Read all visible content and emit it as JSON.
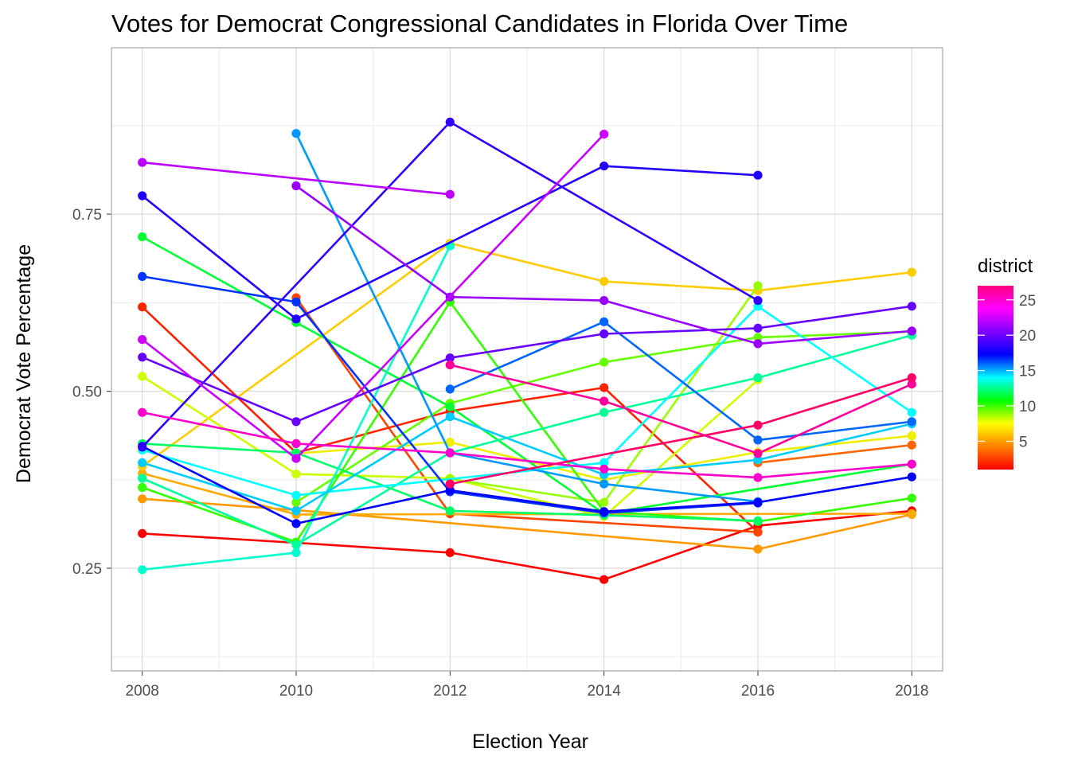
{
  "chart_data": {
    "type": "line",
    "title": "Votes for Democrat Congressional Candidates in Florida Over Time",
    "xlabel": "Election Year",
    "ylabel": "Democrat Vote Percentage",
    "x": [
      2008,
      2010,
      2012,
      2014,
      2016,
      2018
    ],
    "x_ticks": [
      "2008",
      "2010",
      "2012",
      "2014",
      "2016",
      "2018"
    ],
    "xlim": [
      2007.6,
      2018.4
    ],
    "y_ticks": [
      "0.25",
      "0.50",
      "0.75"
    ],
    "ylim": [
      0.105,
      0.985
    ],
    "grid": true,
    "legend": {
      "title": "district",
      "position": "right",
      "type": "colorbar",
      "ticks": [
        "5",
        "10",
        "15",
        "20",
        "25"
      ],
      "range": [
        1,
        27
      ],
      "colors": [
        "#ff0000",
        "#ff8000",
        "#ffff00",
        "#00ff00",
        "#00ffff",
        "#0000ff",
        "#8000ff",
        "#ff00ff",
        "#ff0080"
      ]
    },
    "series": [
      {
        "district": 1,
        "color": "#ff0000",
        "values": [
          0.299,
          0.286,
          0.272,
          0.234,
          0.31,
          0.331
        ]
      },
      {
        "district": 2,
        "color": "#ff2200",
        "values": [
          0.619,
          0.413,
          0.472,
          0.505,
          0.301,
          null
        ]
      },
      {
        "district": 3,
        "color": "#ff4400",
        "values": [
          null,
          0.632,
          0.327,
          null,
          0.301,
          null
        ]
      },
      {
        "district": 4,
        "color": "#ff6600",
        "values": [
          null,
          null,
          null,
          null,
          0.399,
          0.424
        ]
      },
      {
        "district": 5,
        "color": "#ff9900",
        "values": [
          0.348,
          0.332,
          null,
          null,
          0.277,
          0.326
        ]
      },
      {
        "district": 6,
        "color": "#ffaa00",
        "values": [
          0.384,
          0.326,
          null,
          null,
          null,
          0.327
        ]
      },
      {
        "district": 7,
        "color": "#ffcc00",
        "values": [
          0.394,
          null,
          0.709,
          0.655,
          0.642,
          0.668
        ]
      },
      {
        "district": 8,
        "color": "#eeee00",
        "values": [
          null,
          0.412,
          0.428,
          0.375,
          0.414,
          0.437
        ]
      },
      {
        "district": 9,
        "color": "#ccff00",
        "values": [
          0.521,
          0.383,
          0.377,
          0.323,
          0.516,
          null
        ]
      },
      {
        "district": 10,
        "color": "#99ff00",
        "values": [
          null,
          null,
          0.376,
          0.343,
          0.649,
          null
        ]
      },
      {
        "district": 11,
        "color": "#66ff00",
        "values": [
          null,
          0.343,
          0.483,
          0.541,
          0.576,
          0.584
        ]
      },
      {
        "district": 12,
        "color": "#33ff00",
        "values": [
          0.364,
          0.287,
          0.626,
          0.33,
          0.316,
          0.349
        ]
      },
      {
        "district": 13,
        "color": "#00ff33",
        "values": [
          0.718,
          0.597,
          0.478,
          0.327,
          null,
          0.397
        ]
      },
      {
        "district": 14,
        "color": "#00ff66",
        "values": [
          0.426,
          0.413,
          0.331,
          0.325,
          0.317,
          null
        ]
      },
      {
        "district": 15,
        "color": "#00ff99",
        "values": [
          0.377,
          0.283,
          0.413,
          0.47,
          0.519,
          0.579
        ]
      },
      {
        "district": 16,
        "color": "#00ffcc",
        "values": [
          0.248,
          0.272,
          0.705,
          null,
          null,
          null
        ]
      },
      {
        "district": 17,
        "color": "#00ffff",
        "values": [
          0.417,
          0.353,
          null,
          0.399,
          0.62,
          0.47
        ]
      },
      {
        "district": 18,
        "color": "#00ccff",
        "values": [
          0.399,
          0.331,
          0.464,
          0.382,
          0.403,
          0.454
        ]
      },
      {
        "district": 19,
        "color": "#0099ff",
        "values": [
          null,
          0.864,
          0.413,
          0.369,
          0.344,
          null
        ]
      },
      {
        "district": 20,
        "color": "#0066ff",
        "values": [
          null,
          null,
          0.503,
          0.598,
          0.431,
          0.457
        ]
      },
      {
        "district": 21,
        "color": "#0033ff",
        "values": [
          0.662,
          0.626,
          0.358,
          0.328,
          0.342,
          null
        ]
      },
      {
        "district": 22,
        "color": "#0000ff",
        "values": [
          0.422,
          0.313,
          0.36,
          0.33,
          0.343,
          0.379
        ]
      },
      {
        "district": 23,
        "color": "#2200ff",
        "values": [
          0.776,
          0.602,
          null,
          0.818,
          0.805,
          null
        ]
      },
      {
        "district": 24,
        "color": "#3300ff",
        "values": [
          0.421,
          null,
          0.88,
          null,
          0.628,
          null
        ]
      },
      {
        "district": 25,
        "color": "#6600ff",
        "values": [
          0.548,
          0.457,
          0.547,
          0.581,
          0.589,
          0.62
        ]
      },
      {
        "district": 26,
        "color": "#9900ff",
        "values": [
          null,
          0.79,
          0.633,
          0.628,
          0.567,
          0.585
        ]
      },
      {
        "district": 27,
        "color": "#bb00ff",
        "values": [
          0.823,
          null,
          0.778,
          null,
          null,
          null
        ]
      },
      {
        "district": 28,
        "color": "#cc00ff",
        "values": [
          0.573,
          0.405,
          null,
          0.863,
          null,
          null
        ]
      },
      {
        "district": 29,
        "color": "#ff00cc",
        "values": [
          0.47,
          0.426,
          0.413,
          0.39,
          0.378,
          0.397
        ]
      },
      {
        "district": 30,
        "color": "#ff0099",
        "values": [
          null,
          null,
          0.537,
          0.486,
          0.412,
          0.51
        ]
      },
      {
        "district": 31,
        "color": "#ff0066",
        "values": [
          null,
          null,
          0.369,
          null,
          0.452,
          0.519
        ]
      }
    ]
  }
}
